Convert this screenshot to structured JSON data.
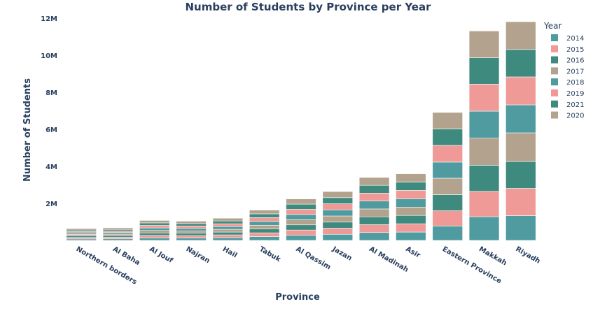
{
  "chart_data": {
    "type": "bar",
    "stacked": true,
    "title": "Number of Students by Province per Year",
    "xlabel": "Province",
    "ylabel": "Number of Students",
    "ylim": [
      0,
      12000000
    ],
    "yticks": [
      {
        "value": 2000000,
        "label": "2M"
      },
      {
        "value": 4000000,
        "label": "4M"
      },
      {
        "value": 6000000,
        "label": "6M"
      },
      {
        "value": 8000000,
        "label": "8M"
      },
      {
        "value": 10000000,
        "label": "10M"
      },
      {
        "value": 12000000,
        "label": "12M"
      }
    ],
    "grid": false,
    "legend": {
      "title": "Year",
      "placement": "right"
    },
    "categories": [
      "Northern borders",
      "Al Baha",
      "Al Jouf",
      "Najran",
      "Hail",
      "Tabuk",
      "Al Qassim",
      "Jazan",
      "Al Madinah",
      "Asir",
      "Eastern Province",
      "Makkah",
      "Riyadh"
    ],
    "series": [
      {
        "name": "2014",
        "color": "#4f9ba0",
        "values": [
          80000,
          85000,
          135000,
          130000,
          150000,
          205000,
          280000,
          330000,
          425000,
          450000,
          780000,
          1280000,
          1340000
        ]
      },
      {
        "name": "2015",
        "color": "#f09a98",
        "values": [
          80000,
          85000,
          135000,
          130000,
          150000,
          205000,
          280000,
          330000,
          425000,
          450000,
          820000,
          1370000,
          1470000
        ]
      },
      {
        "name": "2016",
        "color": "#3f8a7e",
        "values": [
          80000,
          85000,
          135000,
          130000,
          150000,
          205000,
          280000,
          330000,
          425000,
          450000,
          870000,
          1410000,
          1450000
        ]
      },
      {
        "name": "2017",
        "color": "#b3a38e",
        "values": [
          80000,
          85000,
          135000,
          130000,
          150000,
          205000,
          280000,
          330000,
          425000,
          450000,
          890000,
          1460000,
          1550000
        ]
      },
      {
        "name": "2018",
        "color": "#4f9ba0",
        "values": [
          80000,
          85000,
          135000,
          130000,
          150000,
          205000,
          280000,
          330000,
          425000,
          450000,
          870000,
          1460000,
          1510000
        ]
      },
      {
        "name": "2019",
        "color": "#f09a98",
        "values": [
          80000,
          85000,
          135000,
          130000,
          150000,
          205000,
          280000,
          330000,
          425000,
          450000,
          900000,
          1460000,
          1510000
        ]
      },
      {
        "name": "2021",
        "color": "#3f8a7e",
        "values": [
          80000,
          85000,
          135000,
          130000,
          150000,
          205000,
          280000,
          330000,
          425000,
          450000,
          890000,
          1420000,
          1480000
        ]
      },
      {
        "name": "2020",
        "color": "#b3a38e",
        "values": [
          80000,
          85000,
          135000,
          130000,
          150000,
          205000,
          280000,
          330000,
          425000,
          450000,
          890000,
          1450000,
          1500000
        ]
      }
    ]
  }
}
